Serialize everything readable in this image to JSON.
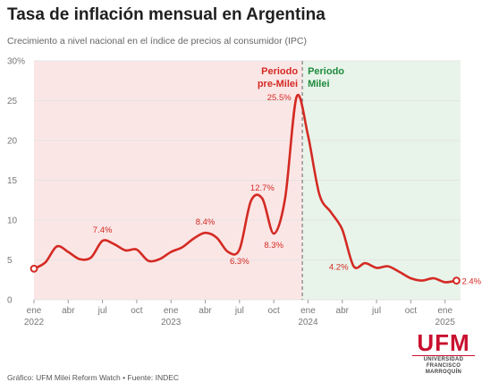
{
  "title": "Tasa de inflación mensual en Argentina",
  "subtitle": "Crecimiento a nivel nacional en el índice de precios al consumidor (IPC)",
  "footer": "Gráfico: UFM Milei Reform Watch • Fuente: INDEC",
  "logo": {
    "mark": "UFM",
    "line1": "UNIVERSIDAD",
    "line2": "FRANCISCO",
    "line3": "MARROQUÍN"
  },
  "colors": {
    "line": "#d42a23",
    "pre_bg": "#fbe6e6",
    "post_bg": "#e8f4ea",
    "pre_label": "#d42a23",
    "post_label": "#1e8a3c",
    "grid": "#e4e4e4",
    "axis_text": "#777777"
  },
  "chart_data": {
    "type": "line",
    "ylim": [
      0,
      30
    ],
    "y_ticks": [
      "0",
      "5",
      "10",
      "15",
      "20",
      "25",
      "30%"
    ],
    "x_tick_labels": [
      {
        "label": "ene",
        "year": "2022",
        "index": 0
      },
      {
        "label": "abr",
        "year": "",
        "index": 3
      },
      {
        "label": "jul",
        "year": "",
        "index": 6
      },
      {
        "label": "oct",
        "year": "",
        "index": 9
      },
      {
        "label": "ene",
        "year": "2023",
        "index": 12
      },
      {
        "label": "abr",
        "year": "",
        "index": 15
      },
      {
        "label": "jul",
        "year": "",
        "index": 18
      },
      {
        "label": "oct",
        "year": "",
        "index": 21
      },
      {
        "label": "ene",
        "year": "2024",
        "index": 24
      },
      {
        "label": "abr",
        "year": "",
        "index": 27
      },
      {
        "label": "jul",
        "year": "",
        "index": 30
      },
      {
        "label": "oct",
        "year": "",
        "index": 33
      },
      {
        "label": "ene",
        "year": "2025",
        "index": 36
      }
    ],
    "x": [
      "2022-01",
      "2022-02",
      "2022-03",
      "2022-04",
      "2022-05",
      "2022-06",
      "2022-07",
      "2022-08",
      "2022-09",
      "2022-10",
      "2022-11",
      "2022-12",
      "2023-01",
      "2023-02",
      "2023-03",
      "2023-04",
      "2023-05",
      "2023-06",
      "2023-07",
      "2023-08",
      "2023-09",
      "2023-10",
      "2023-11",
      "2023-12",
      "2024-01",
      "2024-02",
      "2024-03",
      "2024-04",
      "2024-05",
      "2024-06",
      "2024-07",
      "2024-08",
      "2024-09",
      "2024-10",
      "2024-11",
      "2024-12",
      "2025-01",
      "2025-02"
    ],
    "series": [
      {
        "values": [
          3.9,
          4.7,
          6.7,
          6.0,
          5.1,
          5.3,
          7.4,
          7.0,
          6.2,
          6.3,
          4.9,
          5.1,
          6.0,
          6.6,
          7.7,
          8.4,
          7.8,
          6.0,
          6.3,
          12.4,
          12.7,
          8.3,
          12.8,
          25.5,
          20.6,
          13.2,
          11.0,
          8.8,
          4.2,
          4.6,
          4.0,
          4.2,
          3.5,
          2.7,
          2.4,
          2.7,
          2.2,
          2.4
        ]
      }
    ],
    "annotations": [
      {
        "text": "7.4%",
        "index": 6,
        "value": 7.4,
        "position": "above"
      },
      {
        "text": "8.4%",
        "index": 15,
        "value": 8.4,
        "position": "above"
      },
      {
        "text": "6.3%",
        "index": 18,
        "value": 6.3,
        "position": "below"
      },
      {
        "text": "12.7%",
        "index": 20,
        "value": 12.7,
        "position": "above"
      },
      {
        "text": "8.3%",
        "index": 21,
        "value": 8.3,
        "position": "below"
      },
      {
        "text": "25.5%",
        "index": 23,
        "value": 25.5,
        "position": "left"
      },
      {
        "text": "4.2%",
        "index": 28,
        "value": 4.2,
        "position": "left"
      },
      {
        "text": "2.4%",
        "index": 37,
        "value": 2.4,
        "position": "right"
      }
    ],
    "periods": [
      {
        "label_line1": "Periodo",
        "label_line2": "pre-Milei",
        "start_index": 0,
        "end_index": 23.5
      },
      {
        "label_line1": "Periodo",
        "label_line2": "Milei",
        "start_index": 23.5,
        "end_index": 38.2
      }
    ],
    "grid": true
  }
}
